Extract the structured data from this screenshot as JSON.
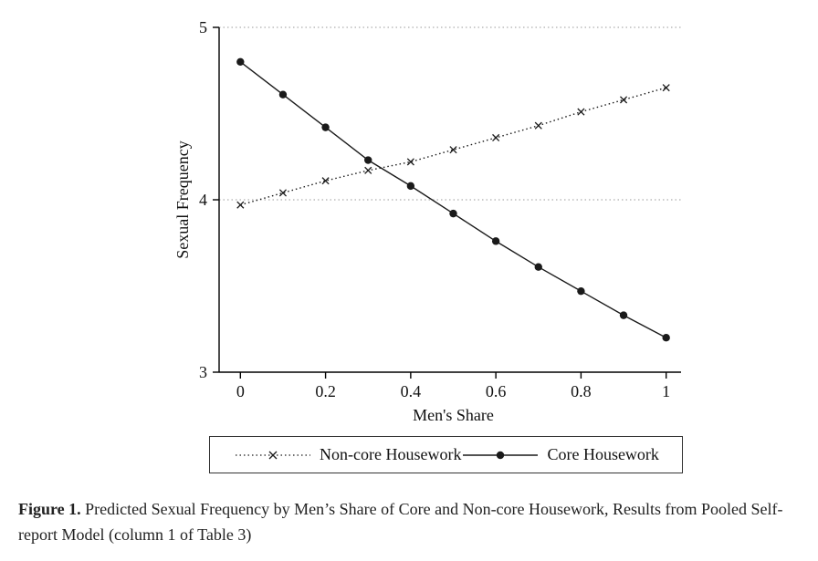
{
  "figure": {
    "caption_label": "Figure 1.",
    "caption_text": "Predicted Sexual Frequency by Men’s Share of Core and Non-core Housework, Results from Pooled Self-report Model (column 1 of Table 3)"
  },
  "chart_data": {
    "type": "line",
    "title": "",
    "xlabel": "Men's Share",
    "ylabel": "Sexual Frequency",
    "x": [
      0,
      0.1,
      0.2,
      0.3,
      0.4,
      0.5,
      0.6,
      0.7,
      0.8,
      0.9,
      1
    ],
    "series": [
      {
        "name": "Non-core Housework",
        "values": [
          3.97,
          4.04,
          4.11,
          4.17,
          4.22,
          4.29,
          4.36,
          4.43,
          4.51,
          4.58,
          4.65
        ],
        "line_style": "dotted",
        "marker": "x",
        "color": "#1a1a1a"
      },
      {
        "name": "Core Housework",
        "values": [
          4.8,
          4.61,
          4.42,
          4.23,
          4.08,
          3.92,
          3.76,
          3.61,
          3.47,
          3.33,
          3.2
        ],
        "line_style": "solid",
        "marker": "circle",
        "color": "#1a1a1a"
      }
    ],
    "ylim": [
      3,
      5
    ],
    "xlim": [
      -0.05,
      1.035
    ],
    "yticks": [
      3,
      4,
      5
    ],
    "xticks": [
      0,
      0.2,
      0.4,
      0.6,
      0.8,
      1
    ],
    "gridlines_y": [
      4,
      5
    ],
    "grid_style": "dotted",
    "legend_position": "bottom",
    "colors": {
      "axis": "#000000",
      "grid": "#999999"
    }
  }
}
